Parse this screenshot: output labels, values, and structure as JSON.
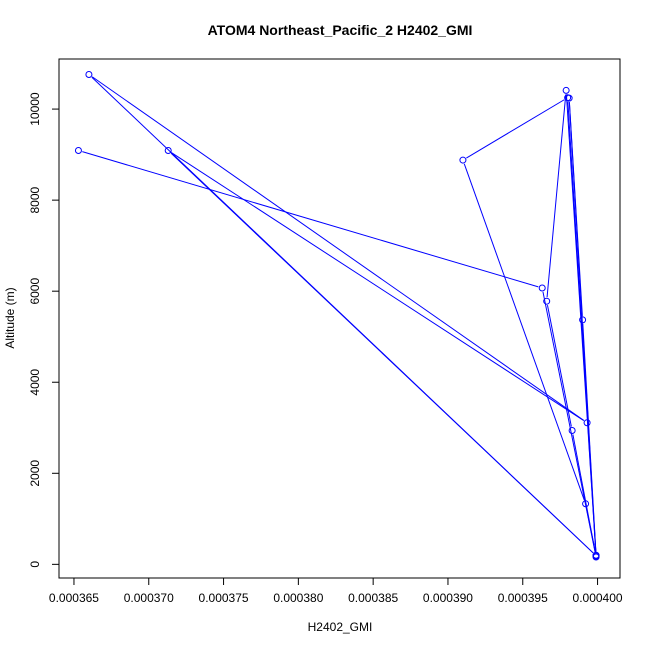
{
  "chart_data": {
    "type": "line",
    "title": "ATOM4 Northeast_Pacific_2 H2402_GMI",
    "xlabel": "H2402_GMI",
    "ylabel": "Altitude (m)",
    "xlim": [
      0.000364,
      0.0004015
    ],
    "ylim": [
      -300,
      11100
    ],
    "x_ticks": [
      0.000365,
      0.00037,
      0.000375,
      0.00038,
      0.000385,
      0.00039,
      0.000395,
      0.0004
    ],
    "x_tick_labels": [
      "0.000365",
      "0.000370",
      "0.000375",
      "0.000380",
      "0.000385",
      "0.000390",
      "0.000395",
      "0.000400"
    ],
    "y_ticks": [
      0,
      2000,
      4000,
      6000,
      8000,
      10000
    ],
    "y_tick_labels": [
      "0",
      "2000",
      "4000",
      "6000",
      "8000",
      "10000"
    ],
    "grid": false,
    "series_color": "#0000ff",
    "series": [
      {
        "x": [
          0.0003653,
          0.0003963,
          0.0003999,
          0.000398,
          0.000391,
          0.0003992,
          0.0003999,
          0.000366,
          0.0003993,
          0.0003713,
          0.0003999,
          0.0003979,
          0.0003966,
          0.0003983,
          0.0003999,
          0.0003981,
          0.000399,
          0.0003999
        ],
        "y": [
          9090,
          6070,
          160,
          10250,
          8880,
          1330,
          190,
          10760,
          3110,
          9090,
          190,
          10410,
          5780,
          2940,
          180,
          10240,
          5370,
          200
        ]
      }
    ]
  }
}
